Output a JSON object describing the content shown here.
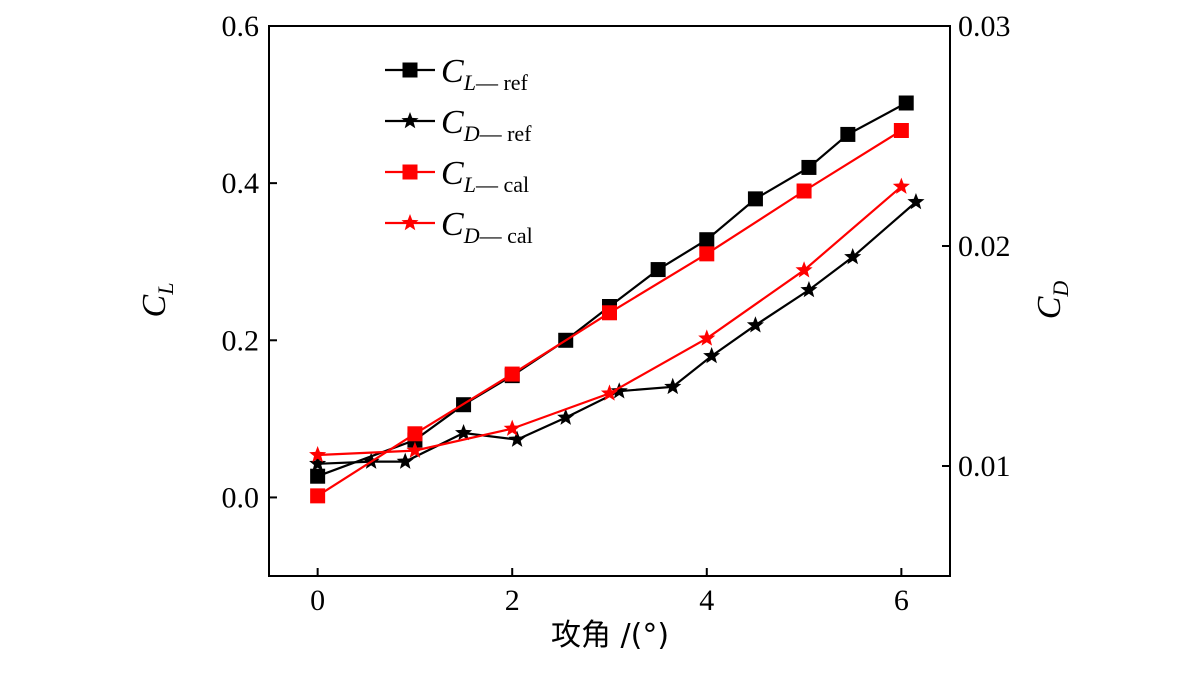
{
  "chart_data": {
    "type": "line",
    "xlabel": "攻角 /(°)",
    "ylabel_left": "C_L",
    "ylabel_right": "C_D",
    "xlim": [
      -0.5,
      6.5
    ],
    "ylim_left": [
      -0.1,
      0.6
    ],
    "ylim_right": [
      0.005,
      0.03
    ],
    "x_ticks": [
      0,
      2,
      4,
      6
    ],
    "y_left_ticks": [
      "0.0",
      "0.2",
      "0.4",
      "0.6"
    ],
    "y_right_ticks": [
      "0.01",
      "0.02",
      "0.03"
    ],
    "legend_position": "top-left",
    "series": [
      {
        "name": "C_L—ref",
        "axis": "left",
        "color": "#000000",
        "marker": "square",
        "x": [
          0,
          1.0,
          1.5,
          2.0,
          2.55,
          3.0,
          3.5,
          4.0,
          4.5,
          5.05,
          5.45,
          6.05
        ],
        "y": [
          0.027,
          0.073,
          0.118,
          0.155,
          0.2,
          0.243,
          0.29,
          0.328,
          0.38,
          0.42,
          0.462,
          0.502
        ]
      },
      {
        "name": "C_D—ref",
        "axis": "right",
        "color": "#000000",
        "marker": "star",
        "x": [
          0,
          0.55,
          0.9,
          1.5,
          2.05,
          2.55,
          3.1,
          3.65,
          4.05,
          4.5,
          5.05,
          5.5,
          6.15
        ],
        "y": [
          0.0101,
          0.0102,
          0.0102,
          0.0115,
          0.0112,
          0.0122,
          0.0134,
          0.0136,
          0.015,
          0.0164,
          0.018,
          0.0195,
          0.022
        ]
      },
      {
        "name": "C_L—cal",
        "axis": "left",
        "color": "#ff0000",
        "marker": "square",
        "x": [
          0,
          1.0,
          2.0,
          3.0,
          4.0,
          5.0,
          6.0
        ],
        "y": [
          0.002,
          0.081,
          0.157,
          0.235,
          0.31,
          0.39,
          0.467
        ]
      },
      {
        "name": "C_D—cal",
        "axis": "right",
        "color": "#ff0000",
        "marker": "star",
        "x": [
          0,
          1.0,
          2.0,
          3.0,
          4.0,
          5.0,
          6.0
        ],
        "y": [
          0.0105,
          0.0107,
          0.0117,
          0.0133,
          0.0158,
          0.0189,
          0.0227
        ]
      }
    ],
    "legend": [
      {
        "main": "C",
        "sub": "L",
        "suffix": "— ref",
        "color": "#000000",
        "marker": "square"
      },
      {
        "main": "C",
        "sub": "D",
        "suffix": "— ref",
        "color": "#000000",
        "marker": "star"
      },
      {
        "main": "C",
        "sub": "L",
        "suffix": "— cal",
        "color": "#ff0000",
        "marker": "square"
      },
      {
        "main": "C",
        "sub": "D",
        "suffix": "— cal",
        "color": "#ff0000",
        "marker": "star"
      }
    ]
  }
}
